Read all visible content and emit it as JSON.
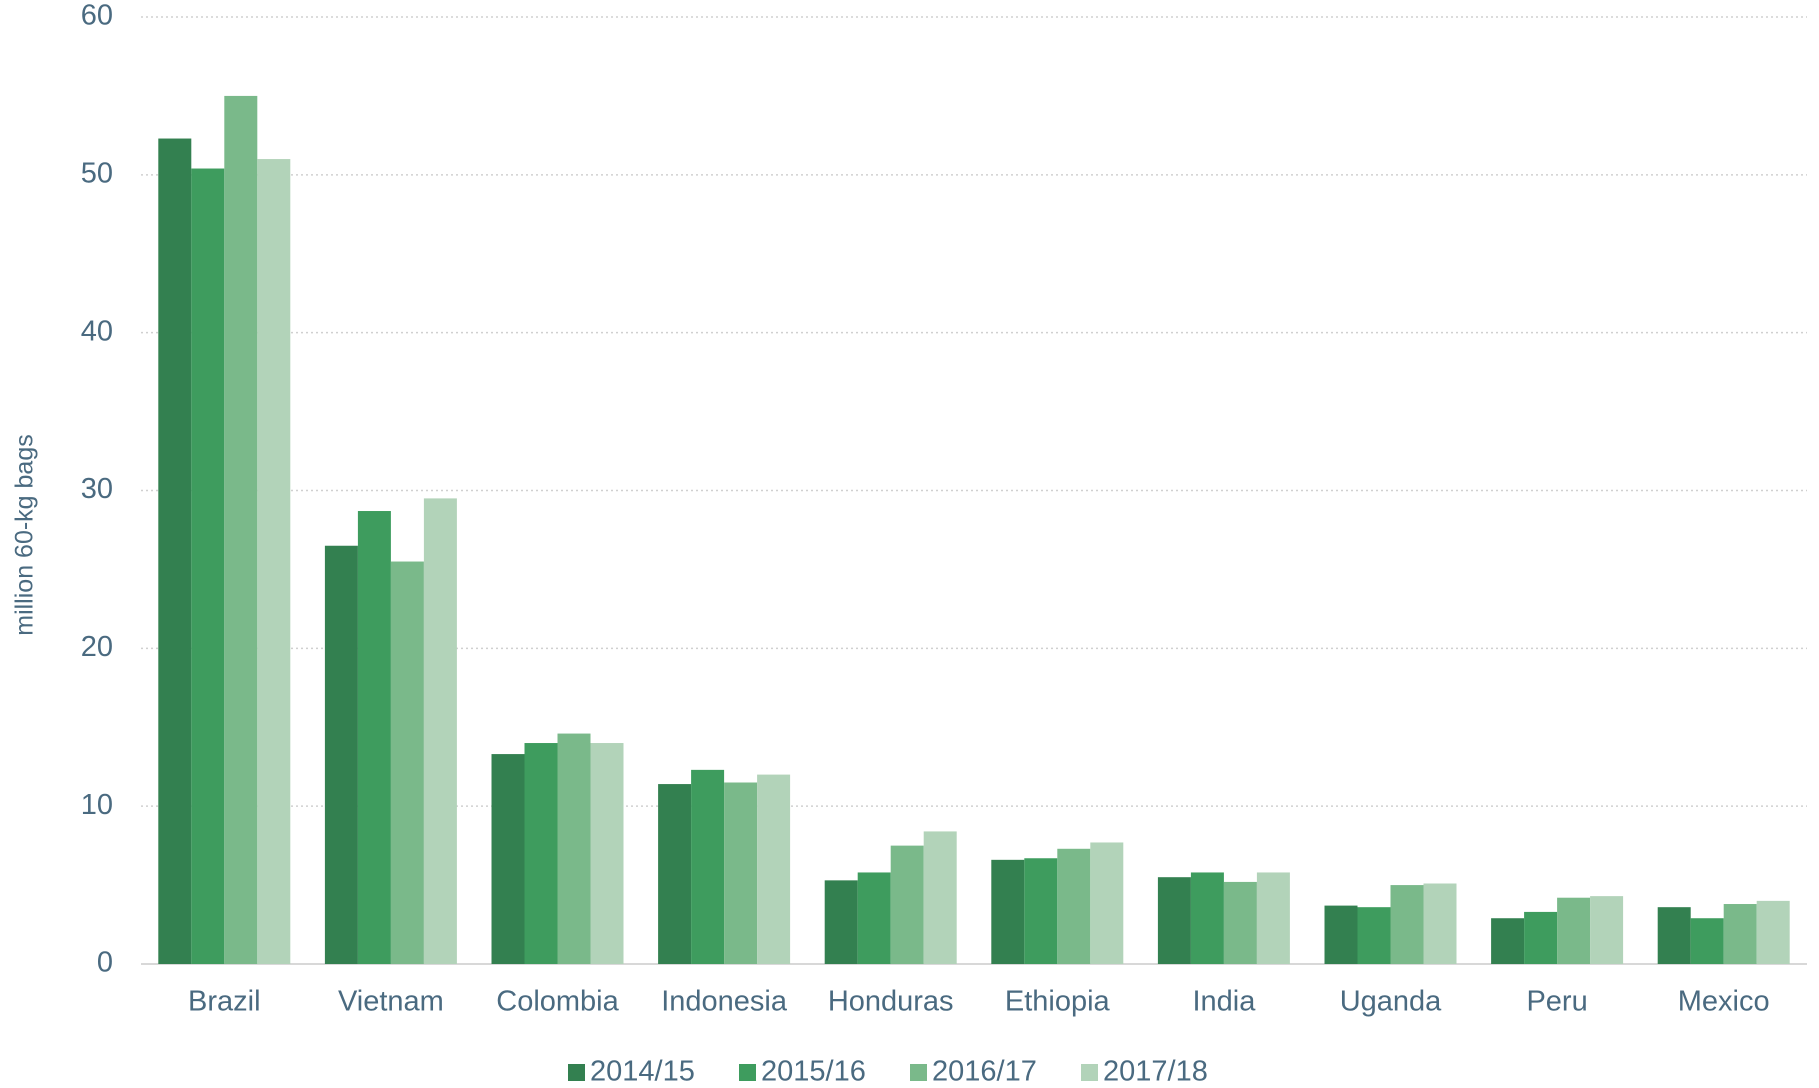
{
  "chart_data": {
    "type": "bar",
    "y_label": "million 60-kg bags",
    "categories": [
      "Brazil",
      "Vietnam",
      "Colombia",
      "Indonesia",
      "Honduras",
      "Ethiopia",
      "India",
      "Uganda",
      "Peru",
      "Mexico"
    ],
    "series": [
      {
        "name": "2014/15",
        "color": "#338050",
        "values": [
          52.3,
          26.5,
          13.3,
          11.4,
          5.3,
          6.6,
          5.5,
          3.7,
          2.9,
          3.6
        ]
      },
      {
        "name": "2015/16",
        "color": "#3e9c5e",
        "values": [
          50.4,
          28.7,
          14.0,
          12.3,
          5.8,
          6.7,
          5.8,
          3.6,
          3.3,
          2.9
        ]
      },
      {
        "name": "2016/17",
        "color": "#7ab98a",
        "values": [
          55.0,
          25.5,
          14.6,
          11.5,
          7.5,
          7.3,
          5.2,
          5.0,
          4.2,
          3.8
        ]
      },
      {
        "name": "2017/18",
        "color": "#b2d3b9",
        "values": [
          51.0,
          29.5,
          14.0,
          12.0,
          8.4,
          7.7,
          5.8,
          5.1,
          4.3,
          4.0
        ]
      }
    ],
    "ylim": [
      0,
      60
    ],
    "yticks": [
      0,
      10,
      20,
      30,
      40,
      50,
      60
    ],
    "grid": true,
    "legend": "bottom"
  }
}
